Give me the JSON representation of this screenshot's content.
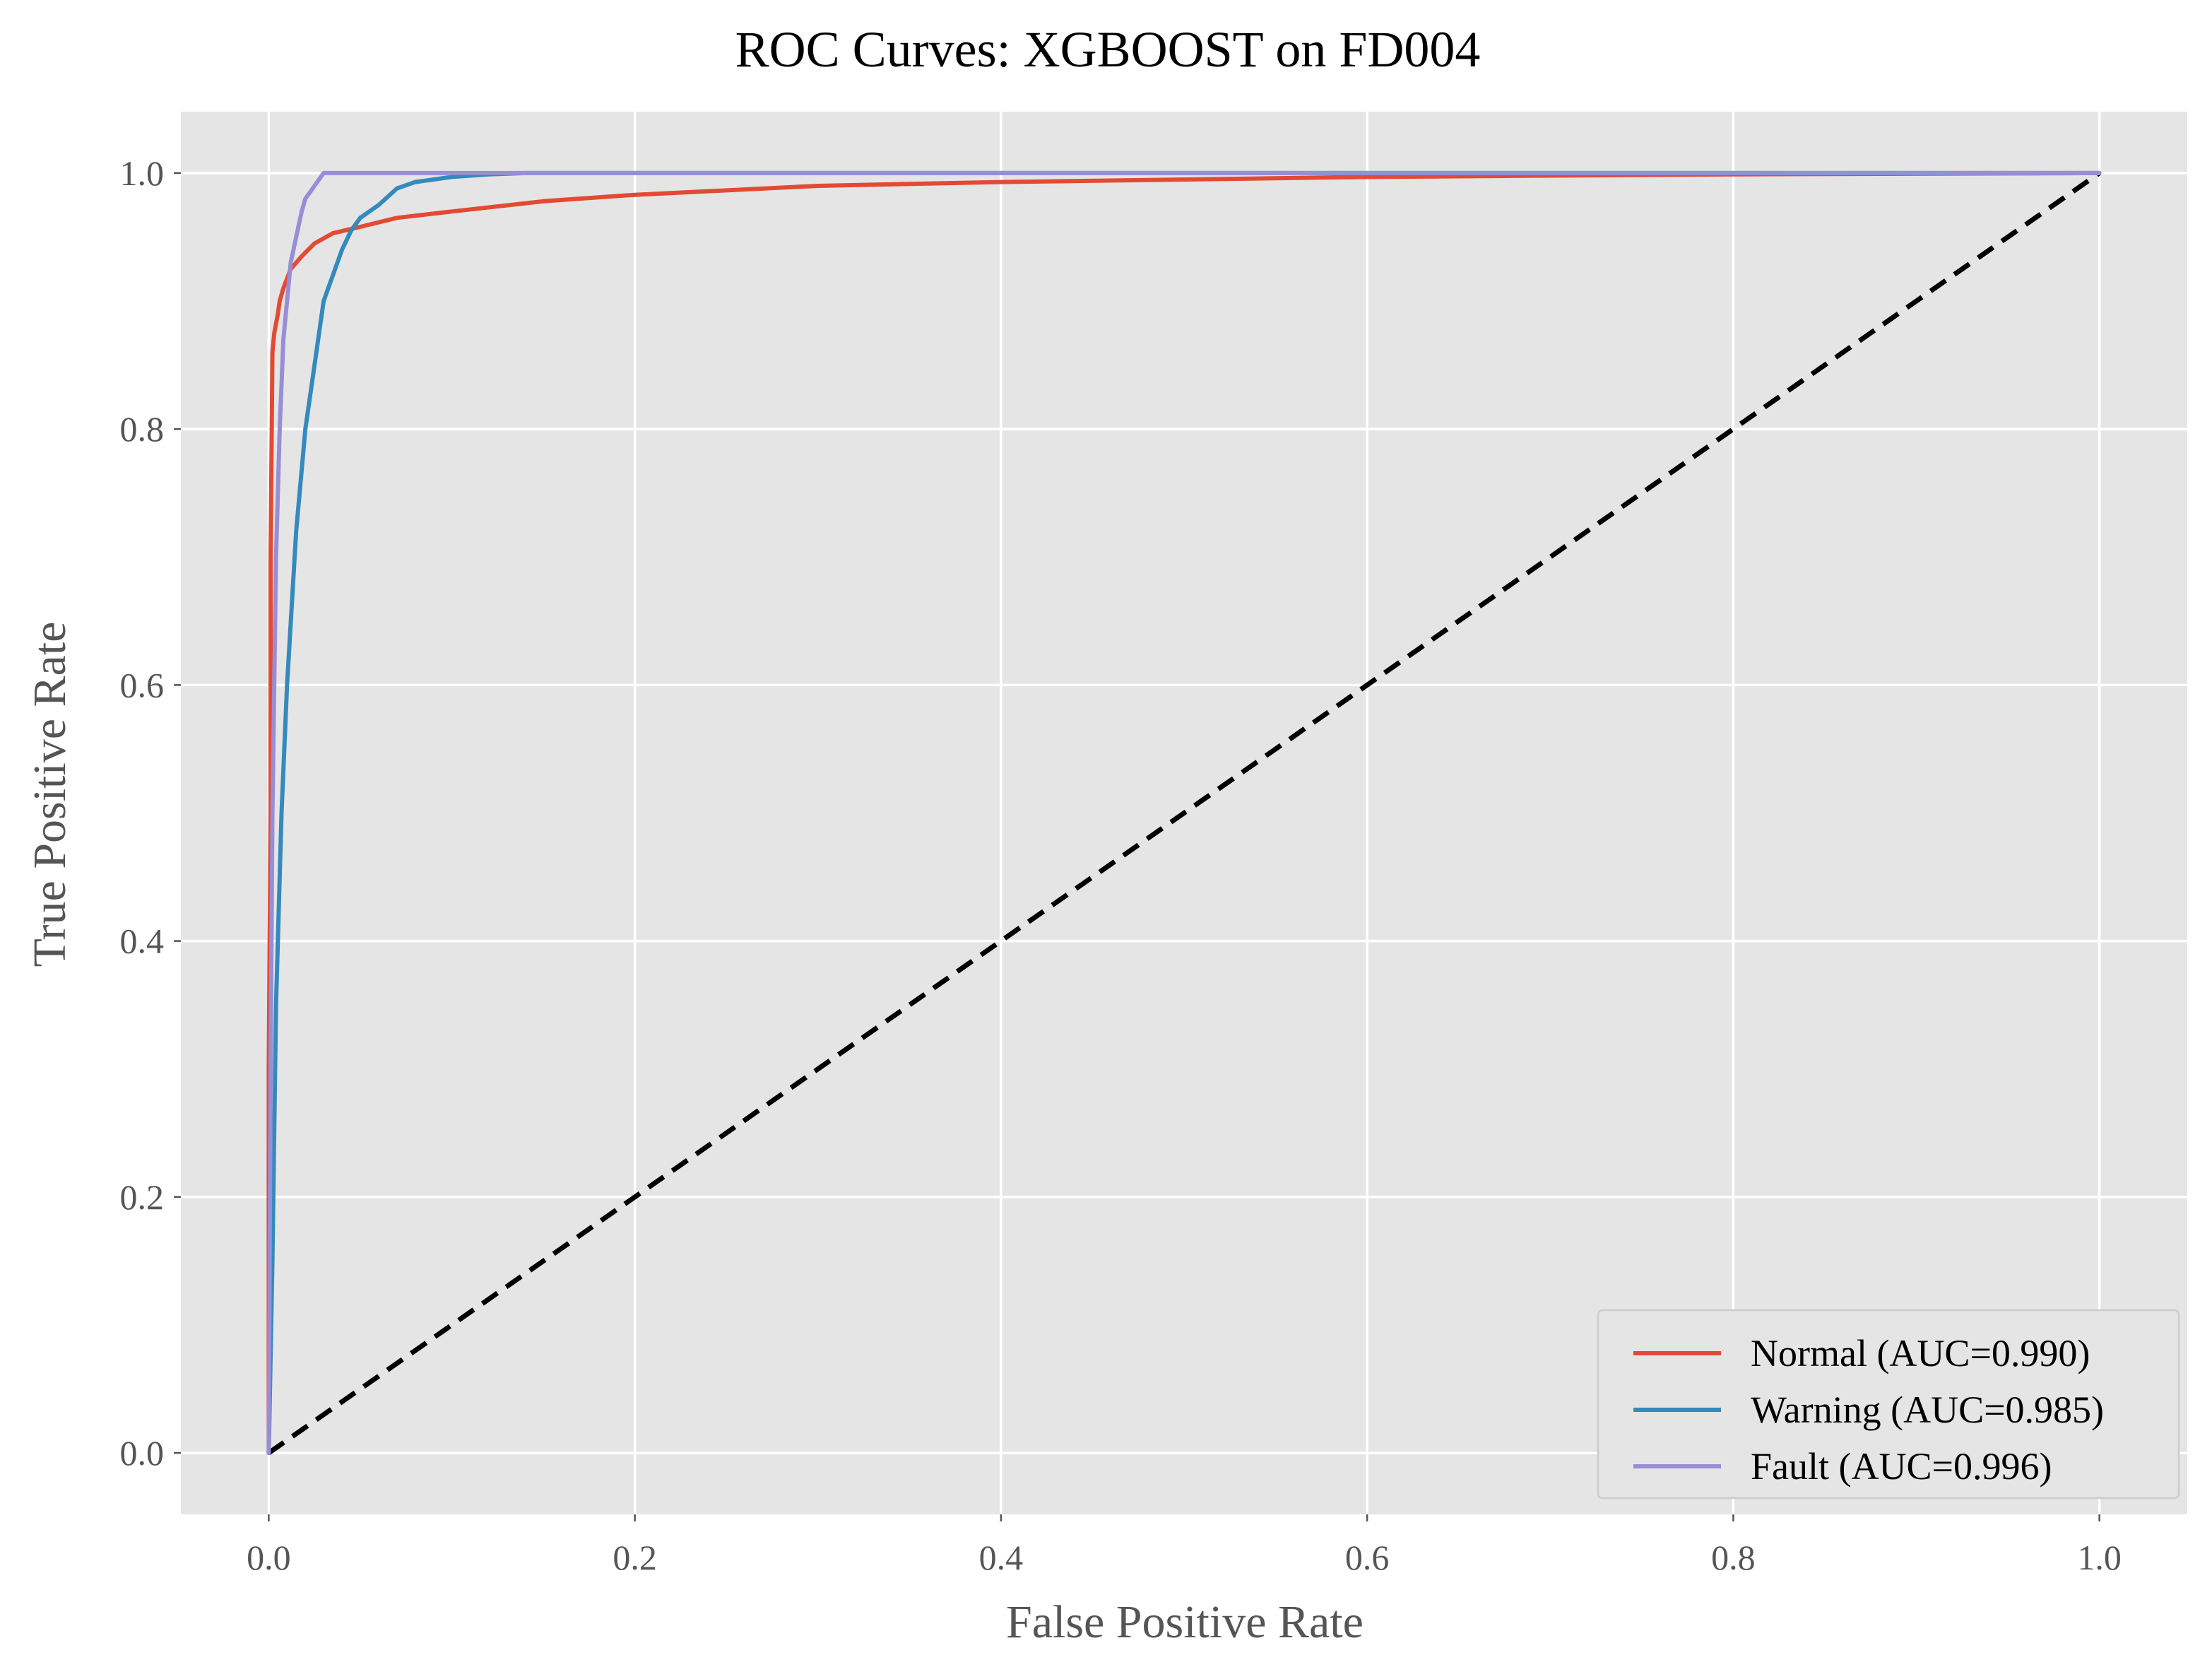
{
  "chart_data": {
    "type": "line",
    "title": "ROC Curves: XGBOOST on FD004",
    "xlabel": "False Positive Rate",
    "ylabel": "True Positive Rate",
    "xlim": [
      -0.048,
      1.048
    ],
    "ylim": [
      -0.048,
      1.048
    ],
    "xticks": [
      0.0,
      0.2,
      0.4,
      0.6,
      0.8,
      1.0
    ],
    "yticks": [
      0.0,
      0.2,
      0.4,
      0.6,
      0.8,
      1.0
    ],
    "xtick_labels": [
      "0.0",
      "0.2",
      "0.4",
      "0.6",
      "0.8",
      "1.0"
    ],
    "ytick_labels": [
      "0.0",
      "0.2",
      "0.4",
      "0.6",
      "0.8",
      "1.0"
    ],
    "grid": true,
    "legend_position": "lower-right",
    "background_color": "#e5e5e5",
    "grid_color": "#ffffff",
    "series": [
      {
        "name": "Normal (AUC=0.990)",
        "color": "#e24a33",
        "x": [
          0.0,
          0.0,
          0.001,
          0.001,
          0.002,
          0.003,
          0.005,
          0.006,
          0.008,
          0.012,
          0.018,
          0.025,
          0.035,
          0.05,
          0.07,
          0.1,
          0.15,
          0.2,
          0.3,
          0.4,
          0.6,
          0.8,
          1.0
        ],
        "y": [
          0.0,
          0.3,
          0.5,
          0.7,
          0.86,
          0.875,
          0.89,
          0.9,
          0.91,
          0.925,
          0.935,
          0.945,
          0.953,
          0.958,
          0.965,
          0.97,
          0.978,
          0.983,
          0.99,
          0.993,
          0.997,
          0.999,
          1.0
        ]
      },
      {
        "name": "Warning (AUC=0.985)",
        "color": "#348abd",
        "x": [
          0.0,
          0.002,
          0.004,
          0.007,
          0.01,
          0.015,
          0.02,
          0.025,
          0.03,
          0.035,
          0.04,
          0.045,
          0.05,
          0.06,
          0.07,
          0.08,
          0.1,
          0.12,
          0.14,
          0.3,
          0.6,
          1.0
        ],
        "y": [
          0.0,
          0.15,
          0.35,
          0.5,
          0.6,
          0.72,
          0.8,
          0.85,
          0.9,
          0.92,
          0.94,
          0.955,
          0.965,
          0.975,
          0.988,
          0.993,
          0.997,
          0.999,
          1.0,
          1.0,
          1.0,
          1.0
        ]
      },
      {
        "name": "Fault (AUC=0.996)",
        "color": "#988ed5",
        "x": [
          0.0,
          0.001,
          0.002,
          0.004,
          0.006,
          0.008,
          0.01,
          0.012,
          0.015,
          0.018,
          0.02,
          0.025,
          0.03,
          0.05,
          0.2,
          0.6,
          1.0
        ],
        "y": [
          0.0,
          0.3,
          0.5,
          0.7,
          0.8,
          0.87,
          0.9,
          0.93,
          0.95,
          0.97,
          0.98,
          0.99,
          1.0,
          1.0,
          1.0,
          1.0,
          1.0
        ]
      }
    ],
    "reference_line": {
      "x": [
        0.0,
        1.0
      ],
      "y": [
        0.0,
        1.0
      ],
      "color": "#000000",
      "style": "dashed"
    }
  }
}
